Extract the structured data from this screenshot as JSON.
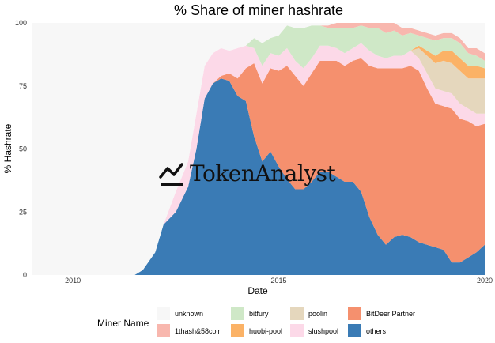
{
  "chart_data": {
    "type": "area",
    "stacked": true,
    "title": "% Share of miner hashrate",
    "xlabel": "Date",
    "ylabel": "% Hashrate",
    "xlim": [
      2009,
      2020
    ],
    "ylim": [
      0,
      100
    ],
    "x_ticks": [
      {
        "value": 2010,
        "label": "2010"
      },
      {
        "value": 2015,
        "label": "2015"
      },
      {
        "value": 2020,
        "label": "2020"
      }
    ],
    "y_ticks": [
      {
        "value": 0,
        "label": "0"
      },
      {
        "value": 25,
        "label": "25"
      },
      {
        "value": 50,
        "label": "50"
      },
      {
        "value": 75,
        "label": "75"
      },
      {
        "value": 100,
        "label": "100"
      }
    ],
    "grid": false,
    "legend_title": "Miner Name",
    "legend_position": "bottom",
    "watermark": "TokenAnalyst",
    "x": [
      2009.0,
      2010.0,
      2011.0,
      2011.5,
      2011.7,
      2012.0,
      2012.2,
      2012.5,
      2012.8,
      2013.0,
      2013.2,
      2013.4,
      2013.6,
      2013.8,
      2014.0,
      2014.2,
      2014.4,
      2014.6,
      2014.8,
      2015.0,
      2015.2,
      2015.4,
      2015.6,
      2015.8,
      2016.0,
      2016.2,
      2016.4,
      2016.6,
      2016.8,
      2017.0,
      2017.2,
      2017.4,
      2017.6,
      2017.8,
      2018.0,
      2018.2,
      2018.4,
      2018.6,
      2018.8,
      2019.0,
      2019.2,
      2019.4,
      2019.6,
      2019.8,
      2020.0
    ],
    "series": [
      {
        "name": "others",
        "color": "#3a7bb5",
        "values": [
          0,
          0,
          0,
          0,
          2,
          9,
          20,
          25,
          35,
          50,
          70,
          76,
          78,
          77,
          71,
          69,
          55,
          45,
          49,
          43,
          38,
          34,
          34,
          37,
          41,
          41,
          39,
          37,
          37,
          33,
          23,
          16,
          12,
          15,
          16,
          15,
          13,
          12,
          11,
          10,
          5,
          5,
          7,
          9,
          12
        ]
      },
      {
        "name": "BitDeer Partner",
        "color": "#f5906e",
        "values": [
          0,
          0,
          0,
          0,
          0,
          0,
          0,
          0,
          0,
          0,
          0,
          0,
          1,
          3,
          7,
          13,
          29,
          31,
          33,
          38,
          45,
          45,
          41,
          43,
          44,
          44,
          46,
          46,
          48,
          53,
          60,
          66,
          70,
          67,
          66,
          68,
          68,
          62,
          57,
          57,
          61,
          57,
          54,
          50,
          48
        ]
      },
      {
        "name": "slushpool",
        "color": "#fcd9e8",
        "values": [
          0,
          0,
          0,
          0,
          0,
          0,
          0,
          8,
          10,
          14,
          13,
          12,
          11,
          9,
          12,
          9,
          6,
          7,
          6,
          6,
          7,
          6,
          7,
          6,
          6,
          6,
          5,
          5,
          5,
          6,
          6,
          5,
          4,
          5,
          5,
          6,
          5,
          6,
          6,
          6,
          6,
          6,
          5,
          5,
          4
        ]
      },
      {
        "name": "poolin",
        "color": "#e5d7bd",
        "values": [
          0,
          0,
          0,
          0,
          0,
          0,
          0,
          0,
          0,
          0,
          0,
          0,
          0,
          0,
          0,
          0,
          0,
          0,
          0,
          0,
          0,
          0,
          0,
          0,
          0,
          0,
          0,
          0,
          0,
          0,
          0,
          0,
          0,
          0,
          0,
          0,
          4,
          7,
          10,
          12,
          12,
          13,
          12,
          14,
          14
        ]
      },
      {
        "name": "huobi-pool",
        "color": "#fbb266",
        "values": [
          0,
          0,
          0,
          0,
          0,
          0,
          0,
          0,
          0,
          0,
          0,
          0,
          0,
          0,
          0,
          0,
          0,
          0,
          0,
          0,
          0,
          0,
          0,
          0,
          0,
          0,
          0,
          0,
          0,
          0,
          0,
          0,
          0,
          0,
          0,
          0,
          1,
          2,
          3,
          4,
          5,
          5,
          5,
          5,
          4
        ]
      },
      {
        "name": "bitfury",
        "color": "#cfe8c7",
        "values": [
          0,
          0,
          0,
          0,
          0,
          0,
          0,
          0,
          0,
          0,
          0,
          0,
          0,
          0,
          0,
          0,
          4,
          9,
          6,
          8,
          9,
          13,
          16,
          13,
          8,
          7,
          8,
          10,
          8,
          7,
          9,
          11,
          10,
          10,
          8,
          7,
          4,
          5,
          6,
          5,
          5,
          6,
          5,
          4,
          3
        ]
      },
      {
        "name": "1thash&58coin",
        "color": "#f8b7ae",
        "values": [
          0,
          0,
          0,
          0,
          0,
          0,
          0,
          0,
          0,
          0,
          0,
          0,
          0,
          0,
          0,
          0,
          0,
          0,
          0,
          0,
          0,
          0,
          0,
          0,
          0,
          1,
          2,
          2,
          2,
          1,
          2,
          2,
          4,
          3,
          3,
          2,
          2,
          2,
          2,
          2,
          2,
          2,
          2,
          3,
          3
        ]
      },
      {
        "name": "unknown",
        "color": "#f7f7f7",
        "values": [
          100,
          100,
          100,
          100,
          98,
          91,
          80,
          67,
          55,
          36,
          17,
          12,
          10,
          11,
          10,
          9,
          6,
          8,
          6,
          5,
          1,
          2,
          2,
          1,
          1,
          1,
          0,
          0,
          0,
          0,
          0,
          0,
          0,
          0,
          2,
          2,
          3,
          4,
          5,
          4,
          4,
          6,
          10,
          10,
          12
        ]
      }
    ],
    "legend_order": [
      "unknown",
      "1thash&58coin",
      "bitfury",
      "huobi-pool",
      "poolin",
      "slushpool",
      "BitDeer Partner",
      "others"
    ]
  }
}
